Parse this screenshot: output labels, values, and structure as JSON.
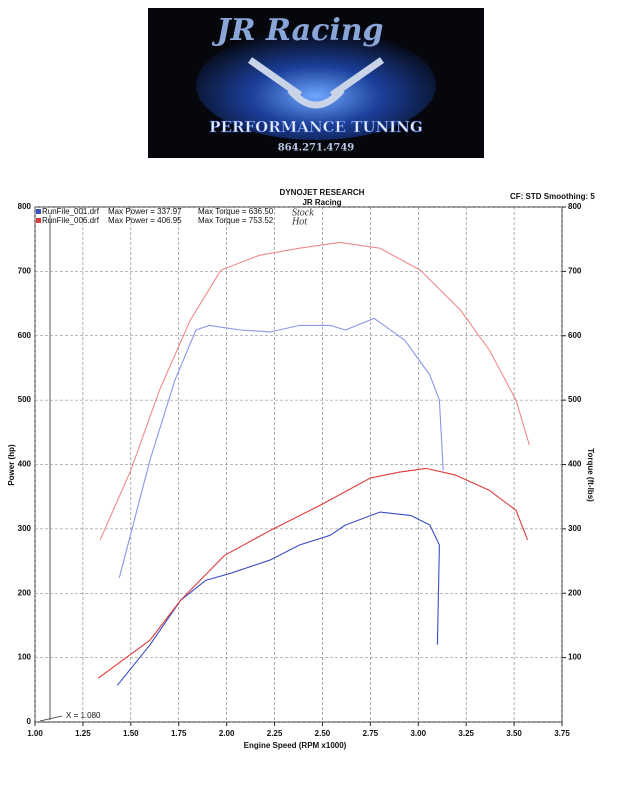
{
  "header": {
    "brand": "JR Racing",
    "tagline": "PERFORMANCE TUNING",
    "phone": "864.271.4749"
  },
  "chart_data": {
    "type": "line",
    "title": "DYNOJET RESEARCH",
    "subtitle": "JR Racing",
    "settings": "CF: STD  Smoothing: 5",
    "xlabel": "Engine Speed (RPM x1000)",
    "ylabel": "Power (hp)",
    "y2label": "Torque (ft-lbs)",
    "annotations": [
      "X = 1.080"
    ],
    "legend": [
      {
        "power": "Max Power = 337.97",
        "torque": "Max Torque = 636.50",
        "note": "Stock"
      },
      {
        "power": "Max Power = 406.95",
        "torque": "Max Torque = 753.52",
        "note": "Hot"
      }
    ],
    "xlim": [
      1,
      3.75
    ],
    "xticks": [
      {
        "value": 1,
        "label": "1.00"
      },
      {
        "value": 1.25,
        "label": "1.25"
      },
      {
        "value": 1.5,
        "label": "1.50"
      },
      {
        "value": 1.75,
        "label": "1.75"
      },
      {
        "value": 2,
        "label": "2.00"
      },
      {
        "value": 2.25,
        "label": "2.25"
      },
      {
        "value": 2.5,
        "label": "2.50"
      },
      {
        "value": 2.75,
        "label": "2.75"
      },
      {
        "value": 3,
        "label": "3.00"
      },
      {
        "value": 3.25,
        "label": "3.25"
      },
      {
        "value": 3.5,
        "label": "3.50"
      },
      {
        "value": 3.75,
        "label": "3.75"
      }
    ],
    "ylim": [
      0,
      800
    ],
    "yticks": [
      0,
      100,
      200,
      300,
      400,
      500,
      600,
      700,
      800
    ],
    "y2lim": [
      0,
      800
    ],
    "y2ticks": [
      100,
      200,
      300,
      400,
      500,
      600,
      700,
      800
    ],
    "grid": true,
    "series": [
      {
        "name": "RunFile_001.drf",
        "color": "#3a4fc4",
        "x": [
          1.43,
          1.6,
          1.76,
          1.89,
          2.02,
          2.23,
          2.38,
          2.54,
          2.62,
          2.8,
          2.96,
          3.06,
          3.11,
          3.1
        ],
        "values": [
          57,
          120,
          189,
          220,
          231,
          252,
          275,
          290,
          306,
          326,
          321,
          306,
          275,
          120
        ]
      },
      {
        "name": "RunFile_006.drf",
        "color": "#e03a3a",
        "x": [
          1.33,
          1.6,
          1.76,
          1.99,
          2.23,
          2.49,
          2.75,
          2.9,
          3.04,
          3.19,
          3.37,
          3.51,
          3.57
        ],
        "values": [
          68,
          127,
          189,
          259,
          298,
          337,
          379,
          388,
          394,
          384,
          360,
          329,
          283
        ]
      },
      {
        "color": "#8a96e6",
        "axis": "y2",
        "x": [
          1.44,
          1.6,
          1.73,
          1.84,
          1.91,
          2.07,
          2.23,
          2.38,
          2.54,
          2.62,
          2.77,
          2.93,
          3.06,
          3.11,
          3.13
        ],
        "values": [
          224,
          407,
          531,
          609,
          616,
          609,
          606,
          616,
          616,
          609,
          627,
          593,
          539,
          500,
          391
        ]
      },
      {
        "color": "#f08a8a",
        "axis": "y2",
        "x": [
          1.34,
          1.5,
          1.65,
          1.81,
          1.97,
          2.17,
          2.38,
          2.59,
          2.8,
          3.01,
          3.22,
          3.37,
          3.51,
          3.58
        ],
        "values": [
          283,
          391,
          516,
          624,
          702,
          725,
          736,
          745,
          736,
          702,
          640,
          578,
          500,
          430
        ]
      }
    ]
  }
}
